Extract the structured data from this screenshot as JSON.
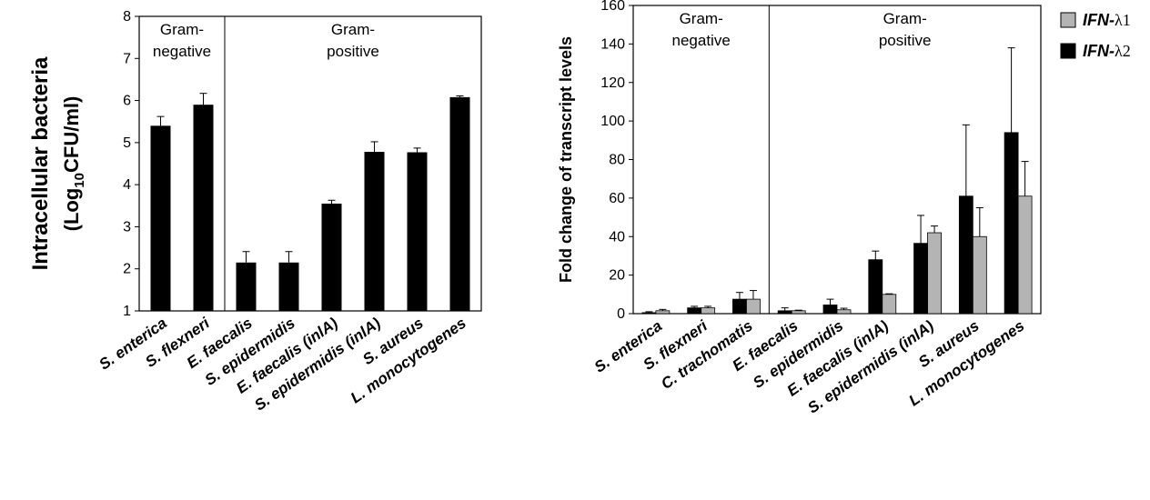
{
  "chart_data": [
    {
      "type": "bar",
      "ylabel_line1": "Intracellular bacteria",
      "ylabel_line2_prefix": "(Log",
      "ylabel_line2_sub": "10",
      "ylabel_line2_suffix": "CFU/ml)",
      "ylim": [
        1,
        8
      ],
      "yticks": [
        "1",
        "2",
        "3",
        "4",
        "5",
        "6",
        "7",
        "8"
      ],
      "regions": [
        {
          "line1": "Gram-",
          "line2": "negative"
        },
        {
          "line1": "Gram-",
          "line2": "positive"
        }
      ],
      "categories": [
        "S. enterica",
        "S. flexneri",
        "E. faecalis",
        "S. epidermidis",
        "E. faecalis (inlA)",
        "S. epidermidis (inlA)",
        "S. aureus",
        "L. monocytogenes"
      ],
      "values": [
        5.4,
        5.9,
        2.15,
        2.15,
        3.55,
        4.78,
        4.77,
        6.08
      ],
      "errors": [
        0.22,
        0.27,
        0.26,
        0.26,
        0.08,
        0.24,
        0.1,
        0.03
      ],
      "color": "#000000"
    },
    {
      "type": "bar",
      "ylabel": "Fold change of transcript levels",
      "ylim": [
        0,
        160
      ],
      "yticks": [
        "0",
        "20",
        "40",
        "60",
        "80",
        "100",
        "120",
        "140",
        "160"
      ],
      "regions": [
        {
          "line1": "Gram-",
          "line2": "negative"
        },
        {
          "line1": "Gram-",
          "line2": "positive"
        }
      ],
      "categories": [
        "S. enterica",
        "S. flexneri",
        "C. trachomatis",
        "E. faecalis",
        "S. epidermidis",
        "E. faecalis (inlA)",
        "S. epidermidis (inlA)",
        "S. aureus",
        "L. monocytogenes"
      ],
      "legend": [
        {
          "prefix": "IFN-",
          "suffix": "λ1",
          "color": "#b4b4b4"
        },
        {
          "prefix": "IFN-",
          "suffix": "λ2",
          "color": "#000000"
        }
      ],
      "series": [
        {
          "name": "IFN-λ2",
          "color": "#000000",
          "values": [
            0.5,
            3,
            7.5,
            1.5,
            4.5,
            28,
            36.5,
            61,
            94
          ],
          "errors": [
            0.5,
            0.8,
            3.5,
            1.5,
            3,
            4.5,
            14.5,
            37,
            44
          ]
        },
        {
          "name": "IFN-λ1",
          "color": "#b4b4b4",
          "values": [
            1.5,
            3,
            7.5,
            1.5,
            2,
            10,
            42,
            40,
            61
          ],
          "errors": [
            0.7,
            0.8,
            4.5,
            0.3,
            0.8,
            0.3,
            3.5,
            15,
            18
          ]
        }
      ]
    }
  ]
}
